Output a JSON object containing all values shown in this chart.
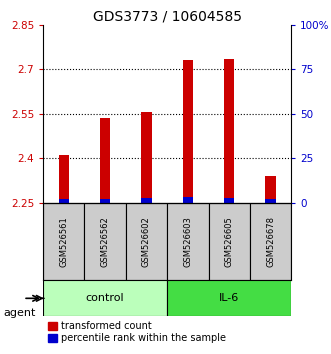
{
  "title": "GDS3773 / 10604585",
  "samples": [
    "GSM526561",
    "GSM526562",
    "GSM526602",
    "GSM526603",
    "GSM526605",
    "GSM526678"
  ],
  "red_values": [
    2.41,
    2.535,
    2.555,
    2.73,
    2.735,
    2.34
  ],
  "blue_values": [
    0.012,
    0.012,
    0.015,
    0.018,
    0.015,
    0.012
  ],
  "baseline": 2.25,
  "ylim_left": [
    2.25,
    2.85
  ],
  "ylim_right": [
    0,
    100
  ],
  "yticks_left": [
    2.25,
    2.4,
    2.55,
    2.7,
    2.85
  ],
  "yticks_right": [
    0,
    25,
    50,
    75,
    100
  ],
  "ytick_labels_left": [
    "2.25",
    "2.4",
    "2.55",
    "2.7",
    "2.85"
  ],
  "ytick_labels_right": [
    "0",
    "25",
    "50",
    "75",
    "100%"
  ],
  "groups": [
    {
      "label": "control",
      "indices": [
        0,
        1,
        2
      ],
      "color": "#bbffbb"
    },
    {
      "label": "IL-6",
      "indices": [
        3,
        4,
        5
      ],
      "color": "#44dd44"
    }
  ],
  "agent_label": "agent",
  "bar_width": 0.25,
  "red_color": "#cc0000",
  "blue_color": "#0000cc",
  "title_fontsize": 10,
  "tick_fontsize": 7.5,
  "legend_fontsize": 7,
  "background_color": "#ffffff",
  "names_bg_color": "#cccccc",
  "grid_dotted_color": "#000000"
}
